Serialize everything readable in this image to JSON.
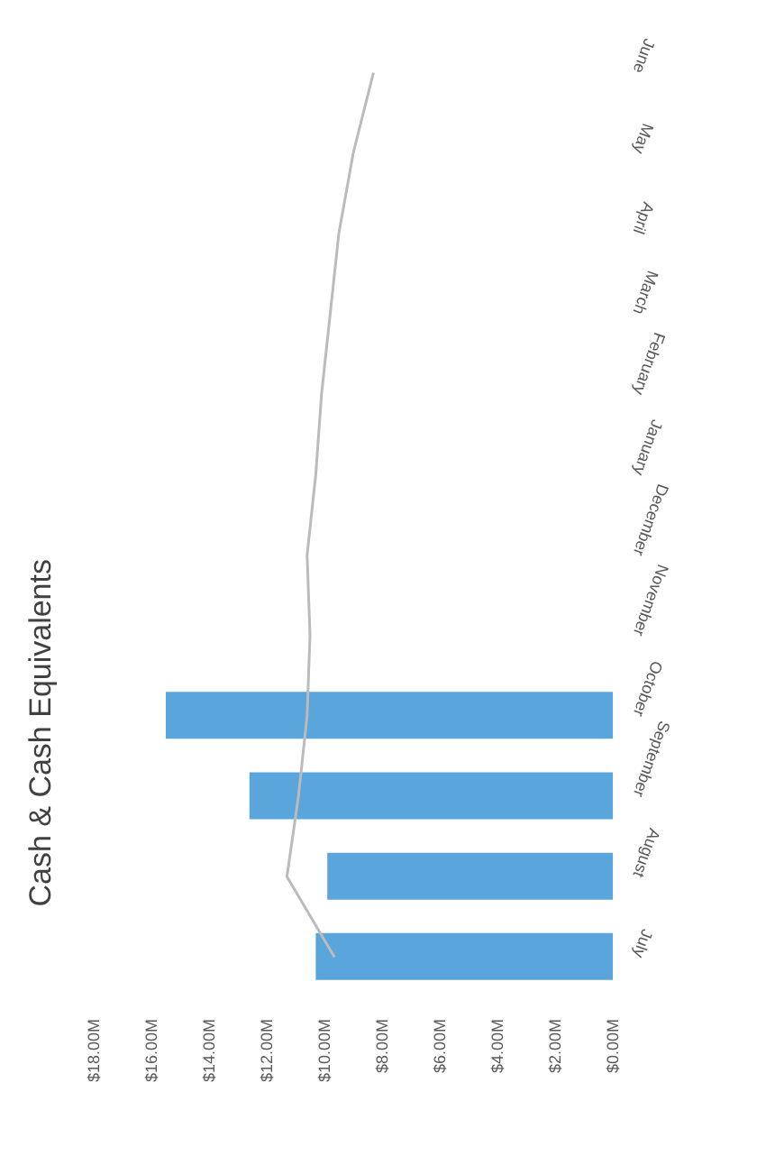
{
  "chart_data": {
    "type": "bar",
    "title": "Cash & Cash Equivalents",
    "orientation": "horizontal",
    "categories": [
      "June",
      "May",
      "April",
      "March",
      "February",
      "January",
      "December",
      "November",
      "October",
      "September",
      "August",
      "July"
    ],
    "series": [
      {
        "color": "#5aa5dc",
        "values": [
          null,
          null,
          null,
          null,
          null,
          null,
          null,
          null,
          15.5,
          12.6,
          9.9,
          10.3
        ]
      },
      {
        "type": "line",
        "color": "#bbbbbb",
        "values": [
          8.3,
          9.0,
          9.5,
          9.8,
          10.1,
          10.3,
          10.6,
          10.5,
          10.6,
          10.9,
          11.3,
          9.65
        ]
      }
    ],
    "xlim": [
      18,
      0
    ],
    "xticks": [
      {
        "value": 18,
        "label": "$18.00M"
      },
      {
        "value": 16,
        "label": "$16.00M"
      },
      {
        "value": 14,
        "label": "$14.00M"
      },
      {
        "value": 12,
        "label": "$12.00M"
      },
      {
        "value": 10,
        "label": "$10.00M"
      },
      {
        "value": 8,
        "label": "$8.00M"
      },
      {
        "value": 6,
        "label": "$6.00M"
      },
      {
        "value": 4,
        "label": "$4.00M"
      },
      {
        "value": 2,
        "label": "$2.00M"
      },
      {
        "value": 0,
        "label": "$0.00M"
      }
    ],
    "grid": false,
    "legend": false,
    "marker": "none"
  }
}
